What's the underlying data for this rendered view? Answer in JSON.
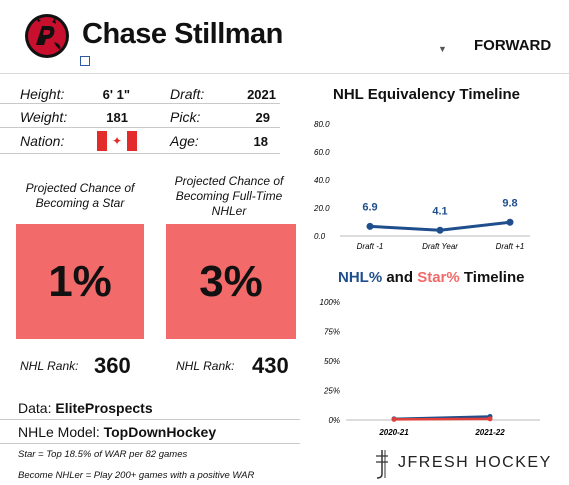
{
  "player": {
    "name": "Chase Stillman",
    "position": "FORWARD"
  },
  "bio": {
    "height_label": "Height:",
    "height": "6' 1\"",
    "weight_label": "Weight:",
    "weight": "181",
    "nation_label": "Nation:",
    "draft_label": "Draft:",
    "draft": "2021",
    "pick_label": "Pick:",
    "pick": "29",
    "age_label": "Age:",
    "age": "18"
  },
  "projections": {
    "star_title": "Projected Chance of Becoming a Star",
    "star_pct": "1%",
    "nhler_title": "Projected Chance of Becoming Full-Time NHLer",
    "nhler_pct": "3%",
    "rank_label": "NHL Rank:",
    "star_rank": "360",
    "nhler_rank": "430"
  },
  "source": {
    "data_label": "Data:",
    "data_value": "EliteProspects",
    "model_label": "NHLe Model:",
    "model_value": "TopDownHockey",
    "note_star": "Star = Top 18.5% of WAR per 82 games",
    "note_nhler": "Become NHLer = Play 200+ games with a positive WAR",
    "brand": "JFRESH HOCKEY"
  },
  "colors": {
    "accent_red": "#f26a69",
    "series_blue": "#1f4e8c",
    "series_red": "#e0403a"
  },
  "chart_data": [
    {
      "type": "line",
      "title": "NHL Equivalency Timeline",
      "categories": [
        "Draft -1",
        "Draft Year",
        "Draft +1"
      ],
      "series": [
        {
          "values": [
            6.9,
            4.1,
            9.8
          ]
        }
      ],
      "ylim": [
        0,
        80
      ],
      "yticks": [
        "80.0",
        "60.0",
        "40.0",
        "20.0",
        "0.0"
      ],
      "data_labels": [
        "6.9",
        "4.1",
        "9.8"
      ]
    },
    {
      "type": "line",
      "title_parts": [
        "NHL%",
        " and ",
        "Star%",
        " Timeline"
      ],
      "categories": [
        "2020-21",
        "2021-22"
      ],
      "series": [
        {
          "name": "NHL%",
          "values": [
            1,
            3
          ]
        },
        {
          "name": "Star%",
          "values": [
            0.5,
            1
          ]
        }
      ],
      "ylim": [
        0,
        100
      ],
      "yticks": [
        "100%",
        "75%",
        "50%",
        "25%",
        "0%"
      ]
    }
  ]
}
